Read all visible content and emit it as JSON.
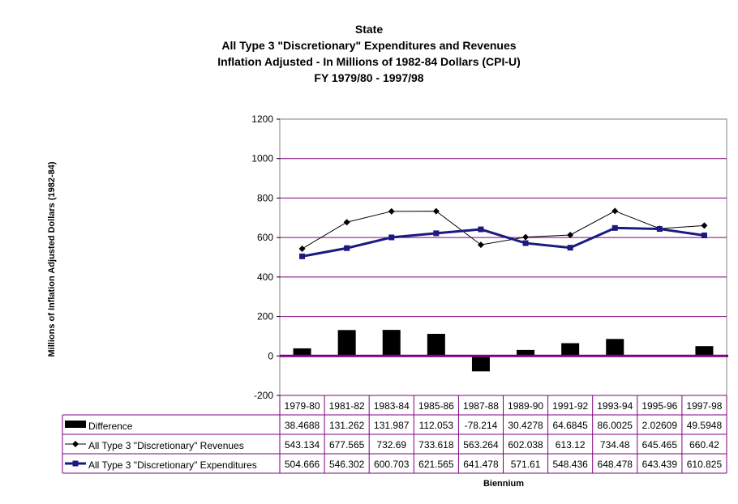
{
  "chart_data": {
    "type": "line",
    "title_lines": [
      "State",
      "All Type 3 \"Discretionary\"  Expenditures and Revenues",
      "Inflation Adjusted - In Millions of 1982-84 Dollars (CPI-U)",
      "FY 1979/80 - 1997/98"
    ],
    "xlabel": "Biennium",
    "ylabel": "Millions of Inflation Adjusted Dollars (1982-84)",
    "ylim": [
      -200,
      1200
    ],
    "yticks": [
      "-200",
      "0",
      "200",
      "400",
      "600",
      "800",
      "1000",
      "1200"
    ],
    "grid": true,
    "categories": [
      "1979-80",
      "1981-82",
      "1983-84",
      "1985-86",
      "1987-88",
      "1989-90",
      "1991-92",
      "1993-94",
      "1995-96",
      "1997-98"
    ],
    "series": [
      {
        "name": "Difference",
        "kind": "bar",
        "color": "#000000",
        "values": [
          38.4688,
          131.262,
          131.987,
          112.053,
          -78.214,
          30.4278,
          64.6845,
          86.0025,
          2.02609,
          49.5948
        ],
        "labels": [
          "38.4688",
          "131.262",
          "131.987",
          "112.053",
          "-78.214",
          "30.4278",
          "64.6845",
          "86.0025",
          "2.02609",
          "49.5948"
        ]
      },
      {
        "name": "All Type 3 \"Discretionary\" Revenues",
        "kind": "line",
        "color": "#000000",
        "values": [
          543.134,
          677.565,
          732.69,
          733.618,
          563.264,
          602.038,
          613.12,
          734.48,
          645.465,
          660.42
        ],
        "labels": [
          "543.134",
          "677.565",
          "732.69",
          "733.618",
          "563.264",
          "602.038",
          "613.12",
          "734.48",
          "645.465",
          "660.42"
        ]
      },
      {
        "name": "All Type 3 \"Discretionary\" Expenditures",
        "kind": "line",
        "color": "#1a1a80",
        "values": [
          504.666,
          546.302,
          600.703,
          621.565,
          641.478,
          571.61,
          548.436,
          648.478,
          643.439,
          610.825
        ],
        "labels": [
          "504.666",
          "546.302",
          "600.703",
          "621.565",
          "641.478",
          "571.61",
          "548.436",
          "648.478",
          "643.439",
          "610.825"
        ]
      }
    ],
    "colors": {
      "gridline": "#800080",
      "zero_line": "#800080",
      "table_border": "#800080"
    }
  }
}
